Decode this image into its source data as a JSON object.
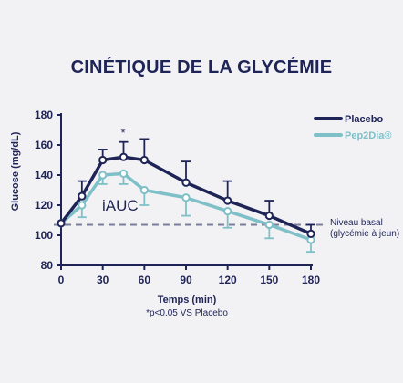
{
  "chart_data": {
    "type": "line",
    "title": "CINÉTIQUE DE LA GLYCÉMIE",
    "xlabel": "Temps (min)",
    "ylabel": "Glucose (mg/dL)",
    "x": [
      0,
      15,
      30,
      45,
      60,
      90,
      120,
      150,
      180
    ],
    "xticks": [
      0,
      30,
      60,
      90,
      120,
      150,
      180
    ],
    "yticks": [
      80,
      100,
      120,
      140,
      160,
      180
    ],
    "xlim": [
      0,
      180
    ],
    "ylim": [
      80,
      180
    ],
    "series": [
      {
        "name": "Placebo",
        "color": "#1f2457",
        "values": [
          108,
          126,
          150,
          152,
          150,
          135,
          123,
          113,
          101
        ],
        "error": [
          0,
          10,
          7,
          10,
          14,
          14,
          13,
          10,
          6
        ]
      },
      {
        "name": "Pep2Dia®",
        "color": "#7fc0c8",
        "values": [
          108,
          120,
          140,
          141,
          130,
          125,
          116,
          107,
          97
        ],
        "error": [
          0,
          8,
          6,
          7,
          10,
          12,
          11,
          9,
          8
        ]
      }
    ],
    "baseline": {
      "value": 107,
      "label_line1": "Niveau basal",
      "label_line2": "(glycémie à jeun)",
      "color": "#7a7ea0"
    },
    "annotations": {
      "area_label": "iAUC",
      "significance_marker": "*",
      "footnote": "*p<0.05 VS Placebo"
    },
    "grid": false,
    "legend_position": "top-right"
  }
}
